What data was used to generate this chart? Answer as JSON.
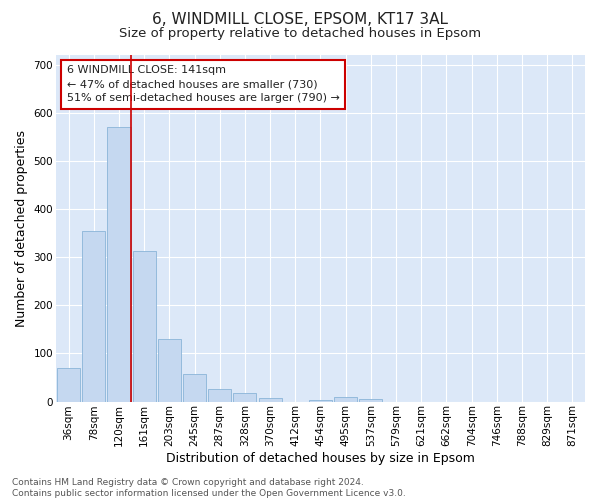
{
  "title": "6, WINDMILL CLOSE, EPSOM, KT17 3AL",
  "subtitle": "Size of property relative to detached houses in Epsom",
  "xlabel": "Distribution of detached houses by size in Epsom",
  "ylabel": "Number of detached properties",
  "categories": [
    "36sqm",
    "78sqm",
    "120sqm",
    "161sqm",
    "203sqm",
    "245sqm",
    "287sqm",
    "328sqm",
    "370sqm",
    "412sqm",
    "454sqm",
    "495sqm",
    "537sqm",
    "579sqm",
    "621sqm",
    "662sqm",
    "704sqm",
    "746sqm",
    "788sqm",
    "829sqm",
    "871sqm"
  ],
  "values": [
    70,
    355,
    570,
    313,
    130,
    58,
    27,
    17,
    8,
    0,
    4,
    10,
    5,
    0,
    0,
    0,
    0,
    0,
    0,
    0,
    0
  ],
  "bar_color": "#c5d8f0",
  "bar_edge_color": "#8ab4d8",
  "vline_x_index": 2,
  "vline_color": "#cc0000",
  "annotation_text": "6 WINDMILL CLOSE: 141sqm\n← 47% of detached houses are smaller (730)\n51% of semi-detached houses are larger (790) →",
  "annotation_box_color": "#ffffff",
  "annotation_box_edge": "#cc0000",
  "fig_background_color": "#ffffff",
  "plot_background_color": "#dce8f8",
  "grid_color": "#ffffff",
  "ylim": [
    0,
    720
  ],
  "yticks": [
    0,
    100,
    200,
    300,
    400,
    500,
    600,
    700
  ],
  "footer": "Contains HM Land Registry data © Crown copyright and database right 2024.\nContains public sector information licensed under the Open Government Licence v3.0.",
  "title_fontsize": 11,
  "subtitle_fontsize": 9.5,
  "label_fontsize": 9,
  "tick_fontsize": 7.5,
  "annotation_fontsize": 8,
  "footer_fontsize": 6.5
}
